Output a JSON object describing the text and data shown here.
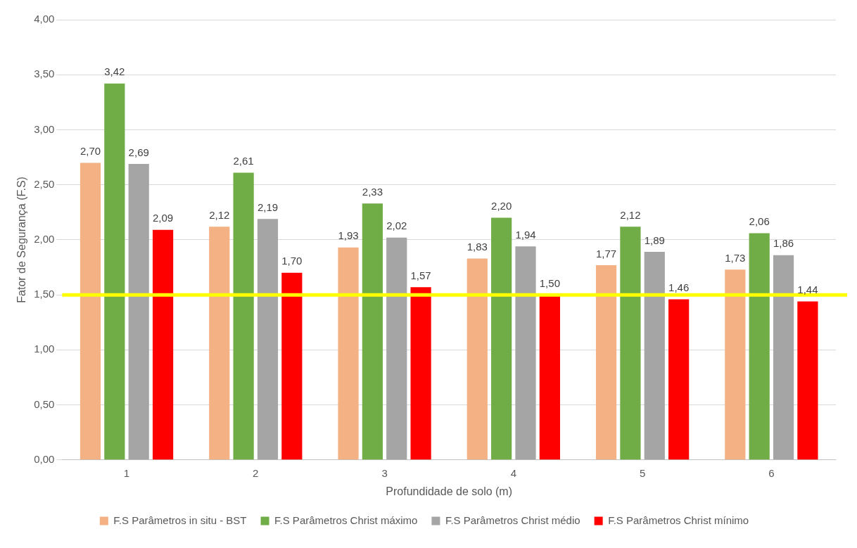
{
  "chart_data": {
    "type": "bar",
    "xlabel": "Profundidade de solo (m)",
    "ylabel": "Fator de Segurança (F.S)",
    "categories": [
      "1",
      "2",
      "3",
      "4",
      "5",
      "6"
    ],
    "series": [
      {
        "name": "F.S Parâmetros in situ - BST",
        "color": "#f4b183",
        "values": [
          2.7,
          2.12,
          1.93,
          1.83,
          1.77,
          1.73
        ],
        "value_labels": [
          "2,70",
          "2,12",
          "1,93",
          "1,83",
          "1,77",
          "1,73"
        ]
      },
      {
        "name": "F.S Parâmetros Christ máximo",
        "color": "#70ad47",
        "values": [
          3.42,
          2.61,
          2.33,
          2.2,
          2.12,
          2.06
        ],
        "value_labels": [
          "3,42",
          "2,61",
          "2,33",
          "2,20",
          "2,12",
          "2,06"
        ]
      },
      {
        "name": "F.S Parâmetros Christ médio",
        "color": "#a5a5a5",
        "values": [
          2.69,
          2.19,
          2.02,
          1.94,
          1.89,
          1.86
        ],
        "value_labels": [
          "2,69",
          "2,19",
          "2,02",
          "1,94",
          "1,89",
          "1,86"
        ]
      },
      {
        "name": "F.S Parâmetros Christ mínimo",
        "color": "#ff0000",
        "values": [
          2.09,
          1.7,
          1.57,
          1.5,
          1.46,
          1.44
        ],
        "value_labels": [
          "2,09",
          "1,70",
          "1,57",
          "1,50",
          "1,46",
          "1,44"
        ]
      }
    ],
    "ylim": [
      0,
      4
    ],
    "yticks": [
      {
        "value": 0,
        "label": "0,00"
      },
      {
        "value": 0.5,
        "label": "0,50"
      },
      {
        "value": 1,
        "label": "1,00"
      },
      {
        "value": 1.5,
        "label": "1,50"
      },
      {
        "value": 2,
        "label": "2,00"
      },
      {
        "value": 2.5,
        "label": "2,50"
      },
      {
        "value": 3,
        "label": "3,00"
      },
      {
        "value": 3.5,
        "label": "3,50"
      },
      {
        "value": 4,
        "label": "4,00"
      }
    ],
    "ref_lines": [
      {
        "axis": "y",
        "value": 1.5,
        "color": "#ffff00"
      }
    ],
    "grid": "y",
    "legend": "bottom"
  }
}
